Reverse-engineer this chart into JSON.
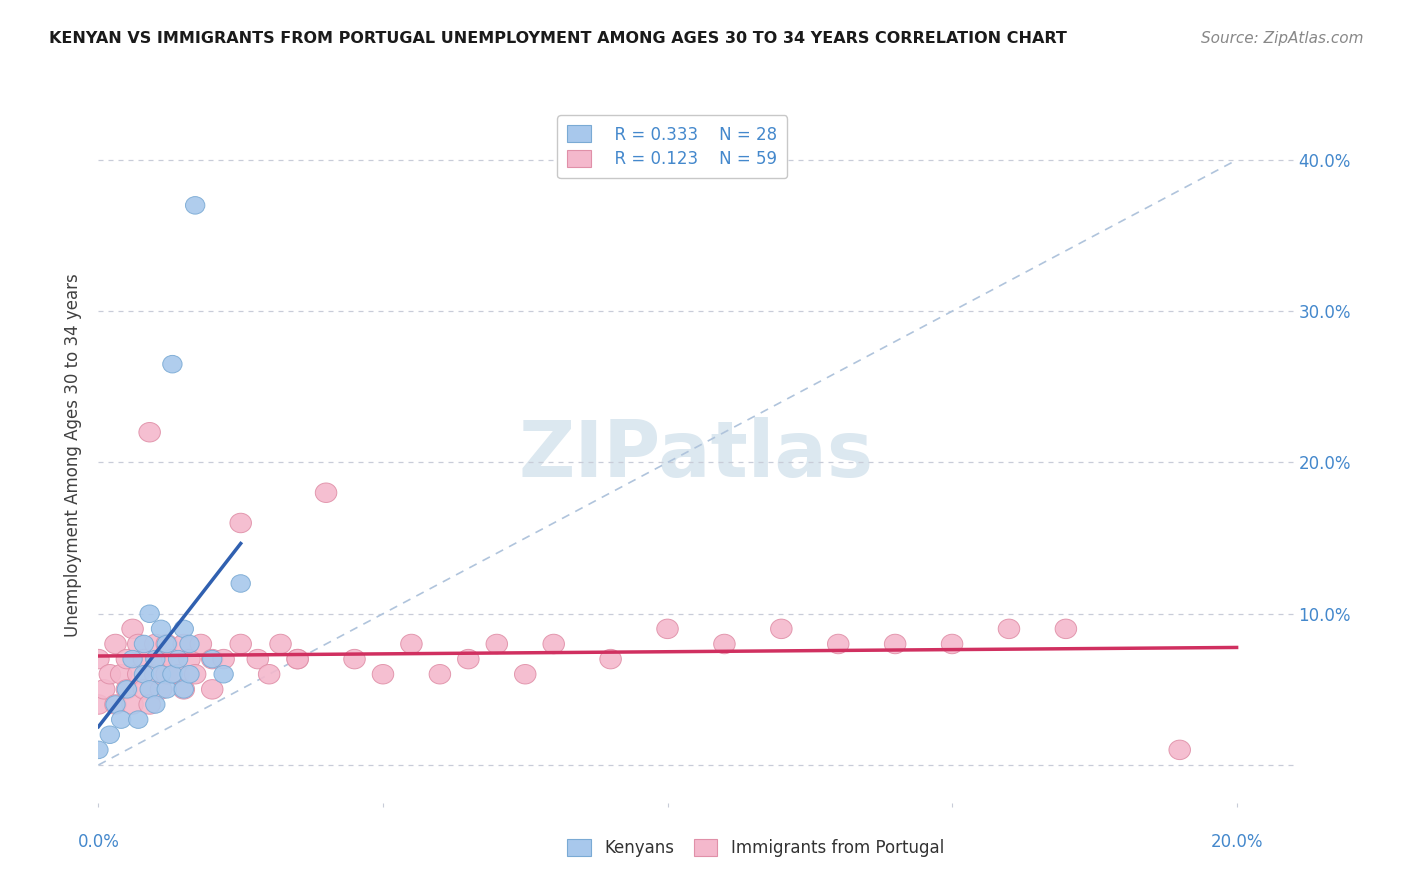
{
  "title": "KENYAN VS IMMIGRANTS FROM PORTUGAL UNEMPLOYMENT AMONG AGES 30 TO 34 YEARS CORRELATION CHART",
  "source": "Source: ZipAtlas.com",
  "ylabel": "Unemployment Among Ages 30 to 34 years",
  "ytick_values": [
    0.0,
    0.1,
    0.2,
    0.3,
    0.4
  ],
  "ytick_labels": [
    "",
    "10.0%",
    "20.0%",
    "30.0%",
    "40.0%"
  ],
  "xlim": [
    0.0,
    0.21
  ],
  "ylim": [
    -0.025,
    0.435
  ],
  "kenyan_R": "0.333",
  "kenyan_N": "28",
  "portugal_R": "0.123",
  "portugal_N": "59",
  "kenyan_color": "#a8c8ec",
  "kenyan_edge_color": "#7aaad4",
  "portugal_color": "#f4b8cc",
  "portugal_edge_color": "#e090a8",
  "kenyan_line_color": "#3060b0",
  "portugal_line_color": "#d03060",
  "diagonal_color": "#b0c4dc",
  "grid_color": "#c8ccd8",
  "title_color": "#1a1a1a",
  "label_color": "#4488cc",
  "watermark_color": "#dce8f0",
  "kenyan_x": [
    0.0,
    0.002,
    0.003,
    0.004,
    0.005,
    0.006,
    0.007,
    0.008,
    0.008,
    0.009,
    0.009,
    0.01,
    0.01,
    0.011,
    0.011,
    0.012,
    0.012,
    0.013,
    0.013,
    0.014,
    0.015,
    0.015,
    0.016,
    0.016,
    0.017,
    0.02,
    0.022,
    0.025
  ],
  "kenyan_y": [
    0.01,
    0.02,
    0.04,
    0.03,
    0.05,
    0.07,
    0.03,
    0.06,
    0.08,
    0.05,
    0.1,
    0.04,
    0.07,
    0.06,
    0.09,
    0.05,
    0.08,
    0.06,
    0.265,
    0.07,
    0.05,
    0.09,
    0.06,
    0.08,
    0.37,
    0.07,
    0.06,
    0.12
  ],
  "portugal_x": [
    0.0,
    0.0,
    0.001,
    0.002,
    0.003,
    0.003,
    0.004,
    0.005,
    0.005,
    0.006,
    0.006,
    0.007,
    0.007,
    0.008,
    0.008,
    0.009,
    0.009,
    0.01,
    0.01,
    0.011,
    0.011,
    0.012,
    0.012,
    0.013,
    0.014,
    0.015,
    0.015,
    0.016,
    0.017,
    0.018,
    0.02,
    0.02,
    0.022,
    0.025,
    0.025,
    0.028,
    0.03,
    0.032,
    0.035,
    0.035,
    0.04,
    0.045,
    0.05,
    0.055,
    0.06,
    0.065,
    0.07,
    0.075,
    0.08,
    0.09,
    0.1,
    0.11,
    0.12,
    0.13,
    0.14,
    0.15,
    0.16,
    0.17,
    0.19
  ],
  "portugal_y": [
    0.04,
    0.07,
    0.05,
    0.06,
    0.04,
    0.08,
    0.06,
    0.05,
    0.07,
    0.04,
    0.09,
    0.06,
    0.08,
    0.05,
    0.07,
    0.04,
    0.22,
    0.06,
    0.08,
    0.05,
    0.07,
    0.06,
    0.08,
    0.07,
    0.06,
    0.05,
    0.08,
    0.07,
    0.06,
    0.08,
    0.05,
    0.07,
    0.07,
    0.16,
    0.08,
    0.07,
    0.06,
    0.08,
    0.07,
    0.07,
    0.18,
    0.07,
    0.06,
    0.08,
    0.06,
    0.07,
    0.08,
    0.06,
    0.08,
    0.07,
    0.09,
    0.08,
    0.09,
    0.08,
    0.08,
    0.08,
    0.09,
    0.09,
    0.01
  ]
}
